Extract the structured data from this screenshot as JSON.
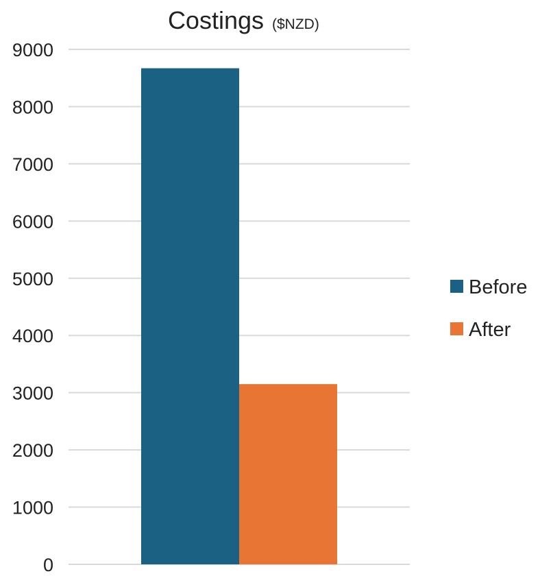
{
  "chart_data": {
    "type": "bar",
    "title": "Costings",
    "subtitle": "($NZD)",
    "xlabel": "",
    "ylabel": "",
    "ylim": [
      0,
      9000
    ],
    "yticks": [
      0,
      1000,
      2000,
      3000,
      4000,
      5000,
      6000,
      7000,
      8000,
      9000
    ],
    "grid": true,
    "legend_position": "right",
    "categories": [
      ""
    ],
    "series": [
      {
        "name": "Before",
        "values": [
          8670
        ],
        "color": "#1a6183"
      },
      {
        "name": "After",
        "values": [
          3150
        ],
        "color": "#e97535"
      }
    ]
  }
}
